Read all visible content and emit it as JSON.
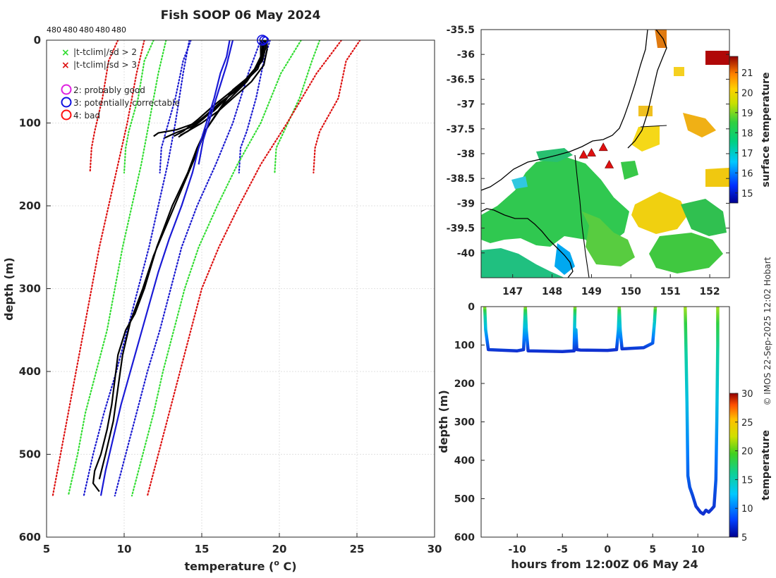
{
  "chart_data": [
    {
      "type": "line",
      "id": "profiles",
      "title": "Fish SOOP 06 May 2024",
      "xlabel_main": "temperature (",
      "xlabel_sup": "o",
      "xlabel_end": " C)",
      "ylabel": "depth (m)",
      "xlim": [
        5,
        30
      ],
      "ylim": [
        0,
        600
      ],
      "y_reversed": true,
      "xticks": [
        5,
        10,
        15,
        20,
        25,
        30
      ],
      "yticks": [
        0,
        100,
        200,
        300,
        400,
        500,
        600
      ],
      "grid": true,
      "top_labels": [
        "480",
        "480",
        "480",
        "480",
        "480"
      ],
      "legend": {
        "placement": "top-left",
        "entries": [
          {
            "label": "|t-tclim|/sd > 2",
            "marker": "x",
            "color": "#33dd33"
          },
          {
            "label": "|t-tclim|/sd > 3",
            "marker": "x",
            "color": "#dd1111"
          },
          {
            "label": "2: probably good",
            "marker": "o",
            "color": "#e020e0"
          },
          {
            "label": "3: potentially correctable",
            "marker": "o",
            "color": "#1010e0"
          },
          {
            "label": "4: bad",
            "marker": "o",
            "color": "#ff1111"
          }
        ]
      },
      "climatology_bounds": [
        {
          "name": "shallow clim -3sd",
          "color": "#dd1111",
          "depth": [
            0,
            25,
            70,
            110,
            130,
            160
          ],
          "temp": [
            9.6,
            9.0,
            8.6,
            8.1,
            7.9,
            7.8
          ]
        },
        {
          "name": "shallow clim -2sd",
          "color": "#33dd33",
          "depth": [
            0,
            25,
            70,
            110,
            130,
            160
          ],
          "temp": [
            11.9,
            11.3,
            10.9,
            10.3,
            10.1,
            10.0
          ]
        },
        {
          "name": "shallow clim -sd",
          "color": "#1a1ad0",
          "depth": [
            0,
            25,
            70,
            110,
            130,
            160
          ],
          "temp": [
            14.3,
            13.8,
            13.3,
            12.7,
            12.4,
            12.3
          ]
        },
        {
          "name": "shallow clim +sd",
          "color": "#1a1ad0",
          "depth": [
            0,
            25,
            70,
            110,
            130,
            160
          ],
          "temp": [
            19.4,
            19.0,
            18.5,
            17.9,
            17.5,
            17.4
          ]
        },
        {
          "name": "shallow clim +2sd",
          "color": "#33dd33",
          "depth": [
            0,
            25,
            70,
            110,
            130,
            160
          ],
          "temp": [
            22.6,
            22.1,
            21.3,
            20.3,
            19.8,
            19.7
          ]
        },
        {
          "name": "shallow clim +3sd",
          "color": "#dd1111",
          "depth": [
            0,
            25,
            70,
            110,
            130,
            160
          ],
          "temp": [
            25.2,
            24.3,
            23.8,
            22.6,
            22.3,
            22.2
          ]
        },
        {
          "name": "deep clim -3sd",
          "color": "#dd1111",
          "depth": [
            0,
            40,
            100,
            150,
            200,
            250,
            300,
            350,
            400,
            450,
            500,
            550
          ],
          "temp": [
            11.3,
            10.8,
            10.2,
            9.6,
            9.0,
            8.4,
            7.9,
            7.4,
            6.9,
            6.4,
            5.9,
            5.4
          ]
        },
        {
          "name": "deep clim -2sd",
          "color": "#33dd33",
          "depth": [
            0,
            40,
            100,
            150,
            200,
            250,
            300,
            350,
            400,
            450,
            500,
            550
          ],
          "temp": [
            12.7,
            12.2,
            11.6,
            11.1,
            10.5,
            9.9,
            9.4,
            8.9,
            8.2,
            7.5,
            7.0,
            6.4
          ]
        },
        {
          "name": "deep clim -sd",
          "color": "#1a1ad0",
          "depth": [
            0,
            40,
            100,
            150,
            200,
            250,
            300,
            350,
            400,
            450,
            500,
            550
          ],
          "temp": [
            14.2,
            13.8,
            13.3,
            12.8,
            12.2,
            11.6,
            10.9,
            10.2,
            9.5,
            8.7,
            8.0,
            7.4
          ]
        },
        {
          "name": "deep clim +sd",
          "color": "#1a1ad0",
          "depth": [
            0,
            40,
            100,
            150,
            200,
            250,
            300,
            350,
            400,
            450,
            500,
            550
          ],
          "temp": [
            18.8,
            18.0,
            17.0,
            15.9,
            14.7,
            13.7,
            13.0,
            12.3,
            11.5,
            10.8,
            10.1,
            9.4
          ]
        },
        {
          "name": "deep clim +2sd",
          "color": "#33dd33",
          "depth": [
            0,
            40,
            100,
            150,
            200,
            250,
            300,
            350,
            400,
            450,
            500,
            550
          ],
          "temp": [
            21.4,
            20.1,
            18.8,
            17.3,
            16.0,
            14.8,
            13.9,
            13.2,
            12.5,
            11.9,
            11.2,
            10.5
          ]
        },
        {
          "name": "deep clim +3sd",
          "color": "#dd1111",
          "depth": [
            0,
            40,
            100,
            150,
            200,
            250,
            300,
            350,
            400,
            450,
            500,
            550
          ],
          "temp": [
            24.0,
            22.4,
            20.5,
            18.8,
            17.4,
            16.1,
            15.0,
            14.3,
            13.6,
            12.9,
            12.2,
            11.5
          ]
        }
      ],
      "profiles": [
        {
          "name": "shallow downcast 1",
          "color": "#000000",
          "depth": [
            0,
            10,
            20,
            35,
            55,
            70,
            85,
            100,
            108,
            112,
            116
          ],
          "temp": [
            19.0,
            19.0,
            18.9,
            18.6,
            17.5,
            16.6,
            15.8,
            14.6,
            13.4,
            12.2,
            11.9
          ]
        },
        {
          "name": "shallow downcast 2",
          "color": "#000000",
          "depth": [
            0,
            10,
            20,
            40,
            60,
            75,
            90,
            105,
            112,
            118
          ],
          "temp": [
            18.9,
            18.9,
            18.8,
            18.3,
            17.3,
            16.2,
            15.3,
            14.3,
            13.3,
            12.6
          ]
        },
        {
          "name": "shallow downcast 3",
          "color": "#000000",
          "depth": [
            0,
            10,
            25,
            45,
            65,
            80,
            95,
            110,
            115
          ],
          "temp": [
            19.1,
            19.1,
            18.9,
            18.0,
            16.9,
            16.0,
            15.1,
            14.1,
            13.6
          ]
        },
        {
          "name": "shallow downcast 4",
          "color": "#000000",
          "depth": [
            0,
            8,
            20,
            35,
            50,
            65,
            80,
            95,
            110,
            116
          ],
          "temp": [
            18.8,
            18.8,
            18.8,
            18.4,
            17.7,
            16.7,
            15.7,
            14.8,
            13.8,
            13.2
          ]
        },
        {
          "name": "shallow downcast 5",
          "color": "#000000",
          "depth": [
            0,
            12,
            30,
            50,
            70,
            85,
            100,
            112,
            117
          ],
          "temp": [
            19.2,
            19.2,
            19.0,
            18.2,
            17.0,
            16.1,
            15.0,
            13.9,
            13.5
          ]
        },
        {
          "name": "deep downcast 1",
          "color": "#000000",
          "depth": [
            0,
            20,
            40,
            60,
            90,
            110,
            130,
            160,
            200,
            250,
            300,
            330,
            350,
            380,
            410,
            440,
            470,
            500,
            520,
            535,
            545
          ],
          "temp": [
            19.0,
            18.9,
            18.3,
            17.0,
            15.9,
            15.2,
            14.7,
            14.1,
            13.1,
            12.1,
            11.3,
            10.7,
            10.1,
            9.6,
            9.4,
            9.2,
            8.9,
            8.5,
            8.1,
            8.0,
            8.4
          ]
        },
        {
          "name": "deep downcast 2",
          "color": "#000000",
          "depth": [
            0,
            25,
            50,
            80,
            110,
            140,
            180,
            220,
            260,
            300,
            340,
            380,
            420,
            460,
            500,
            530
          ],
          "temp": [
            19.0,
            18.8,
            17.9,
            16.3,
            15.2,
            14.6,
            13.7,
            12.8,
            11.9,
            11.2,
            10.4,
            9.9,
            9.6,
            9.3,
            8.8,
            8.4
          ]
        },
        {
          "name": "deep upcast",
          "color": "#1a1ad6",
          "depth": [
            0,
            20,
            40,
            70,
            100,
            130,
            160,
            200,
            240,
            280,
            320,
            360,
            400,
            440,
            480,
            520,
            550
          ],
          "temp": [
            16.8,
            16.6,
            16.2,
            15.8,
            15.3,
            14.8,
            14.4,
            13.7,
            12.9,
            12.2,
            11.6,
            11.0,
            10.4,
            9.8,
            9.3,
            8.8,
            8.5
          ]
        },
        {
          "name": "shallow upcast",
          "color": "#1a1ad6",
          "depth": [
            0,
            30,
            60,
            90,
            120,
            150
          ],
          "temp": [
            17.0,
            16.6,
            16.1,
            15.6,
            15.1,
            14.8
          ]
        }
      ],
      "flag_circles": [
        {
          "flag": "3: potentially correctable",
          "color": "#1010e0",
          "x": 18.9,
          "depth": 0
        },
        {
          "flag": "3: potentially correctable",
          "color": "#1010e0",
          "x": 19.0,
          "depth": 0
        },
        {
          "flag": "3: potentially correctable",
          "color": "#1010e0",
          "x": 19.1,
          "depth": 0
        }
      ]
    },
    {
      "type": "heatmap",
      "id": "map",
      "xlim": [
        146.2,
        152.5
      ],
      "ylim": [
        -40.5,
        -35.5
      ],
      "xticks": [
        147,
        148,
        149,
        150,
        151,
        152
      ],
      "yticks": [
        -35.5,
        -36,
        -36.5,
        -37,
        -37.5,
        -38,
        -38.5,
        -39,
        -39.5,
        -40
      ],
      "colorbar": {
        "label": "surface temperature",
        "range": [
          14.5,
          21.8
        ],
        "ticks": [
          15,
          16,
          17,
          18,
          19,
          20,
          21
        ]
      },
      "deployments": [
        {
          "lon": 148.8,
          "lat": -38.02
        },
        {
          "lon": 149.0,
          "lat": -37.98
        },
        {
          "lon": 149.3,
          "lat": -37.87
        },
        {
          "lon": 149.45,
          "lat": -38.22
        }
      ]
    },
    {
      "type": "scatter",
      "id": "timeseries",
      "xlabel": "hours from 12:00Z 06 May 24",
      "ylabel": "depth (m)",
      "xlim": [
        -14,
        13.5
      ],
      "ylim": [
        0,
        600
      ],
      "y_reversed": true,
      "xticks": [
        -10,
        -5,
        0,
        5,
        10
      ],
      "yticks": [
        0,
        100,
        200,
        300,
        400,
        500,
        600
      ],
      "colorbar": {
        "label": "temperature",
        "range": [
          5,
          30
        ],
        "ticks": [
          5,
          10,
          15,
          20,
          25,
          30
        ]
      },
      "segments": [
        {
          "t": [
            -13.6,
            -13.5,
            -13.2,
            -10,
            -9.3,
            -9.2,
            -9.1,
            -9.0,
            -8.8,
            -5,
            -3.7,
            -3.6
          ],
          "depth": [
            0,
            60,
            112,
            115,
            112,
            60,
            0,
            60,
            115,
            117,
            115,
            0
          ]
        },
        {
          "t": [
            -3.5,
            -3.4,
            -3.0,
            0,
            1.0,
            1.2,
            1.3,
            1.4,
            1.6,
            4,
            5.0,
            5.2,
            5.3
          ],
          "depth": [
            60,
            112,
            113,
            114,
            112,
            60,
            0,
            60,
            110,
            107,
            95,
            40,
            0
          ]
        },
        {
          "t": [
            8.6,
            8.8,
            8.9,
            9.1,
            9.4,
            9.8,
            10.3,
            10.6,
            10.9,
            11.2,
            11.5,
            11.8,
            12.0,
            12.1,
            12.2,
            12.2
          ],
          "depth": [
            0,
            250,
            440,
            470,
            490,
            520,
            535,
            540,
            530,
            535,
            528,
            520,
            450,
            300,
            100,
            0
          ]
        }
      ]
    }
  ],
  "credit": "© IMOS 22-Sep-2025 12:02 Hobart"
}
